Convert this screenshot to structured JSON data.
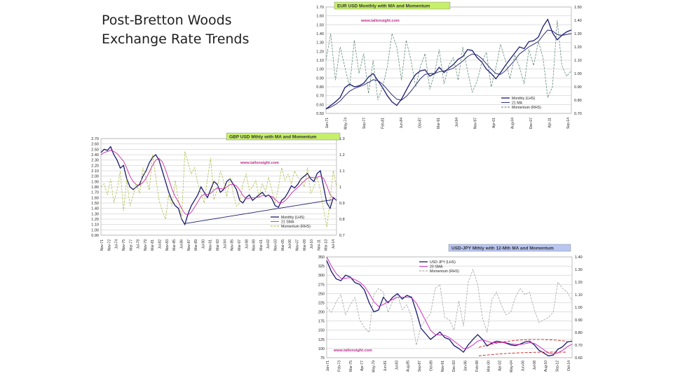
{
  "slide": {
    "title_line1": "Post-Bretton Woods",
    "title_line2": "Exchange Rate Trends"
  },
  "chart_data": [
    {
      "id": "eurusd",
      "type": "line",
      "title": "EUR USD Monthly with MA and Momentum",
      "watermark": "www.tallonsight.com",
      "title_bg": "#c6ef6a",
      "left_axis": {
        "min": 0.5,
        "max": 1.7,
        "ticks": [
          "1.70",
          "1.60",
          "1.50",
          "1.40",
          "1.30",
          "1.20",
          "1.10",
          "1.00",
          "0.90",
          "0.80",
          "0.70",
          "0.60",
          "0.50"
        ]
      },
      "right_axis": {
        "min": 0.7,
        "max": 1.5,
        "ticks": [
          "1.50",
          "1.40",
          "1.30",
          "1.20",
          "1.10",
          "1.00",
          "0.90",
          "0.80",
          "0.70"
        ]
      },
      "x_labels": [
        "Jan-71",
        "May-74",
        "Sep-77",
        "Feb-81",
        "Jun-84",
        "Oct-87",
        "Mar-91",
        "Jul-94",
        "Nov-97",
        "Apr-01",
        "Aug-04",
        "Dec-07",
        "Apr-11",
        "Sep-14"
      ],
      "legend": [
        "Monthly (LHS)",
        "21 MA",
        "Momentum (RHS)"
      ],
      "series": [
        {
          "name": "Monthly (LHS)",
          "color": "#1a1a6e",
          "values": [
            0.55,
            0.59,
            0.63,
            0.68,
            0.79,
            0.83,
            0.8,
            0.81,
            0.84,
            0.91,
            0.95,
            0.87,
            0.79,
            0.7,
            0.63,
            0.59,
            0.66,
            0.76,
            0.86,
            0.94,
            0.98,
            0.99,
            0.92,
            0.95,
            1.02,
            0.96,
            1.01,
            1.05,
            1.11,
            1.14,
            1.22,
            1.21,
            1.13,
            1.08,
            1.0,
            0.95,
            0.89,
            0.96,
            1.04,
            1.11,
            1.18,
            1.25,
            1.23,
            1.31,
            1.32,
            1.36,
            1.48,
            1.56,
            1.41,
            1.33,
            1.38,
            1.42,
            1.44
          ]
        },
        {
          "name": "21 MA",
          "color": "#1a1a6e",
          "values": [
            0.55,
            0.57,
            0.6,
            0.64,
            0.7,
            0.75,
            0.78,
            0.8,
            0.82,
            0.85,
            0.88,
            0.87,
            0.83,
            0.77,
            0.71,
            0.66,
            0.65,
            0.69,
            0.75,
            0.82,
            0.89,
            0.94,
            0.95,
            0.95,
            0.97,
            0.98,
            0.99,
            1.01,
            1.05,
            1.09,
            1.14,
            1.17,
            1.16,
            1.12,
            1.06,
            1.0,
            0.95,
            0.94,
            0.98,
            1.04,
            1.1,
            1.17,
            1.21,
            1.25,
            1.28,
            1.31,
            1.38,
            1.44,
            1.43,
            1.39,
            1.38,
            1.39,
            1.4
          ]
        },
        {
          "name": "Momentum (RHS)",
          "color": "#4f7f6a",
          "values": [
            1.1,
            1.3,
            0.95,
            1.2,
            1.05,
            0.9,
            1.25,
            1.0,
            1.15,
            0.85,
            1.1,
            0.8,
            0.9,
            1.05,
            1.3,
            1.2,
            0.95,
            1.25,
            1.1,
            0.9,
            1.05,
            1.15,
            0.88,
            1.0,
            1.18,
            0.92,
            1.06,
            1.12,
            0.95,
            1.2,
            1.02,
            0.86,
            0.94,
            1.08,
            1.16,
            0.9,
            1.04,
            1.22,
            1.1,
            0.96,
            1.14,
            1.05,
            0.92,
            1.18,
            1.06,
            1.24,
            1.12,
            0.82,
            0.9,
            1.4,
            1.06,
            0.98,
            1.02
          ]
        }
      ]
    },
    {
      "id": "gbpusd",
      "type": "line",
      "title": "GBP USD Mthly with MA and Momentum",
      "watermark": "www.tallonsight.com",
      "title_bg": "#c6ef6a",
      "left_axis": {
        "min": 0.9,
        "max": 2.7,
        "ticks": [
          "2.70",
          "2.60",
          "2.50",
          "2.40",
          "2.30",
          "2.20",
          "2.10",
          "2.00",
          "1.90",
          "1.80",
          "1.70",
          "1.60",
          "1.50",
          "1.40",
          "1.30",
          "1.20",
          "1.10",
          "1.00",
          "0.90"
        ]
      },
      "right_axis": {
        "min": 0.7,
        "max": 1.3,
        "ticks": [
          "1.3",
          "1.2",
          "1.1",
          "1",
          "0.9",
          "0.8",
          "0.7"
        ]
      },
      "x_labels": [
        "Nov-71",
        "Nov-72",
        "Jul-74",
        "Nov-75",
        "Mar-77",
        "Jul-78",
        "Nov-79",
        "Mar-81",
        "Jul-82",
        "Nov-83",
        "Mar-85",
        "Jul-86",
        "Nov-87",
        "Mar-89",
        "Jul-90",
        "Nov-91",
        "Mar-93",
        "Jul-94",
        "Nov-95",
        "Mar-97",
        "Jul-98",
        "Nov-99",
        "Mar-01",
        "Jul-02",
        "Nov-03",
        "Mar-05",
        "Jul-06",
        "Nov-07",
        "Mar-09",
        "Jul-10",
        "Nov-11",
        "Mar-13",
        "Jul-14"
      ],
      "legend": [
        "Monthly (LHS)",
        "21 SMA",
        "Momentum (RHS)"
      ],
      "series": [
        {
          "name": "Monthly (LHS)",
          "color": "#1a1a6e",
          "values": [
            2.44,
            2.5,
            2.48,
            2.55,
            2.4,
            2.3,
            2.15,
            2.2,
            1.95,
            1.8,
            1.75,
            1.8,
            1.85,
            2.0,
            2.1,
            2.25,
            2.35,
            2.4,
            2.3,
            2.1,
            1.9,
            1.7,
            1.55,
            1.45,
            1.4,
            1.2,
            1.1,
            1.3,
            1.45,
            1.55,
            1.65,
            1.8,
            1.7,
            1.6,
            1.75,
            1.9,
            1.85,
            1.7,
            1.75,
            1.9,
            1.95,
            1.85,
            1.75,
            1.55,
            1.5,
            1.6,
            1.65,
            1.55,
            1.6,
            1.65,
            1.7,
            1.62,
            1.65,
            1.58,
            1.45,
            1.42,
            1.55,
            1.6,
            1.7,
            1.82,
            1.78,
            1.85,
            1.95,
            2.0,
            2.05,
            1.95,
            1.9,
            2.05,
            2.1,
            1.8,
            1.5,
            1.4,
            1.6,
            1.55
          ]
        },
        {
          "name": "21 SMA",
          "color": "#cc2aa6",
          "values": [
            2.4,
            2.44,
            2.46,
            2.48,
            2.46,
            2.42,
            2.35,
            2.28,
            2.15,
            2.0,
            1.9,
            1.84,
            1.83,
            1.88,
            1.96,
            2.08,
            2.2,
            2.3,
            2.33,
            2.27,
            2.12,
            1.94,
            1.76,
            1.62,
            1.52,
            1.4,
            1.3,
            1.28,
            1.33,
            1.42,
            1.52,
            1.62,
            1.66,
            1.66,
            1.68,
            1.74,
            1.78,
            1.77,
            1.76,
            1.8,
            1.84,
            1.85,
            1.82,
            1.74,
            1.64,
            1.58,
            1.59,
            1.6,
            1.6,
            1.61,
            1.64,
            1.64,
            1.64,
            1.62,
            1.57,
            1.51,
            1.5,
            1.54,
            1.6,
            1.68,
            1.74,
            1.79,
            1.85,
            1.91,
            1.96,
            1.98,
            1.97,
            1.98,
            2.0,
            1.96,
            1.82,
            1.66,
            1.58,
            1.56
          ]
        },
        {
          "name": "Momentum (RHS)",
          "color": "#a8b83a",
          "values": [
            1.0,
            1.02,
            0.95,
            1.05,
            0.9,
            0.98,
            1.1,
            0.85,
            1.05,
            0.88,
            0.95,
            1.02,
            0.96,
            1.12,
            1.05,
            0.98,
            1.2,
            1.06,
            0.92,
            0.85,
            0.8,
            0.95,
            0.88,
            1.04,
            0.92,
            0.8,
            1.22,
            1.15,
            1.08,
            1.12,
            1.02,
            0.96,
            0.9,
            1.05,
            1.18,
            0.92,
            0.98,
            1.1,
            1.04,
            0.94,
            1.06,
            0.96,
            0.88,
            0.9,
            1.02,
            1.08,
            0.98,
            1.0,
            1.04,
            0.94,
            1.02,
            0.97,
            1.06,
            0.98,
            0.9,
            1.0,
            1.12,
            1.04,
            1.08,
            1.02,
            1.1,
            1.06,
            1.04,
            1.0,
            1.12,
            0.96,
            1.0,
            1.06,
            0.98,
            0.86,
            0.75,
            0.92,
            1.1,
            1.0
          ]
        }
      ],
      "trendline": {
        "color": "#1a1a6e",
        "start": 1.12,
        "end": 1.56
      }
    },
    {
      "id": "usdjpy",
      "type": "line",
      "title": "USD-JPY Mthly with 12-Mth MA and Momentum",
      "watermark": "www.tallonsight.com",
      "title_bg": "#b9c6f2",
      "left_axis": {
        "min": 75,
        "max": 350,
        "ticks": [
          "350",
          "325",
          "300",
          "275",
          "250",
          "225",
          "200",
          "175",
          "150",
          "125",
          "100",
          "75"
        ]
      },
      "right_axis": {
        "min": 0.6,
        "max": 1.4,
        "ticks": [
          "1.40",
          "1.30",
          "1.20",
          "1.10",
          "1.00",
          "0.90",
          "0.80",
          "0.70",
          "0.60"
        ]
      },
      "x_labels": [
        "Jan-71",
        "Feb-73",
        "Mar-75",
        "Apr-77",
        "May-79",
        "Jun-81",
        "Jul-83",
        "Aug-85",
        "Sep-87",
        "Oct-89",
        "Nov-91",
        "Dec-93",
        "Jan-96",
        "Feb-98",
        "Mar-00",
        "Apr-02",
        "May-04",
        "Jun-06",
        "Jul-08",
        "Aug-10",
        "Sep-12",
        "Oct-14"
      ],
      "legend": [
        "USD JPY (LHS)",
        "20 SMA",
        "Momentum (RHS)"
      ],
      "series": [
        {
          "name": "USD JPY (LHS)",
          "color": "#1a1a6e",
          "values": [
            340,
            310,
            290,
            285,
            300,
            295,
            280,
            275,
            260,
            225,
            200,
            205,
            240,
            225,
            240,
            250,
            235,
            245,
            240,
            200,
            155,
            140,
            125,
            135,
            145,
            130,
            125,
            108,
            100,
            90,
            110,
            125,
            138,
            125,
            107,
            115,
            120,
            118,
            115,
            110,
            108,
            112,
            118,
            120,
            110,
            95,
            88,
            80,
            82,
            98,
            105,
            118,
            120
          ]
        },
        {
          "name": "20 SMA",
          "color": "#cc1fbf",
          "values": [
            350,
            325,
            305,
            292,
            292,
            293,
            288,
            281,
            270,
            250,
            228,
            215,
            220,
            228,
            234,
            240,
            240,
            240,
            238,
            224,
            200,
            175,
            150,
            138,
            137,
            136,
            130,
            120,
            110,
            100,
            102,
            110,
            120,
            124,
            120,
            116,
            116,
            117,
            116,
            113,
            111,
            111,
            113,
            116,
            114,
            106,
            97,
            88,
            85,
            88,
            95,
            105,
            112
          ]
        },
        {
          "name": "Momentum (RHS)",
          "color": "#9a9a9a",
          "values": [
            1.0,
            0.96,
            1.04,
            1.1,
            0.94,
            1.02,
            1.08,
            0.9,
            0.84,
            0.8,
            1.1,
            1.15,
            1.12,
            0.96,
            1.05,
            1.1,
            0.98,
            1.02,
            0.92,
            0.7,
            0.85,
            0.9,
            0.95,
            1.15,
            1.18,
            0.92,
            0.9,
            0.82,
            1.05,
            0.85,
            1.2,
            1.3,
            1.18,
            0.92,
            0.8,
            1.06,
            1.12,
            1.02,
            0.94,
            0.96,
            1.08,
            1.15,
            1.1,
            1.12,
            0.98,
            0.88,
            0.9,
            0.92,
            0.96,
            1.2,
            1.15,
            1.12,
            1.05
          ]
        }
      ],
      "dashed_trend": {
        "color": "#cc2222"
      }
    }
  ]
}
